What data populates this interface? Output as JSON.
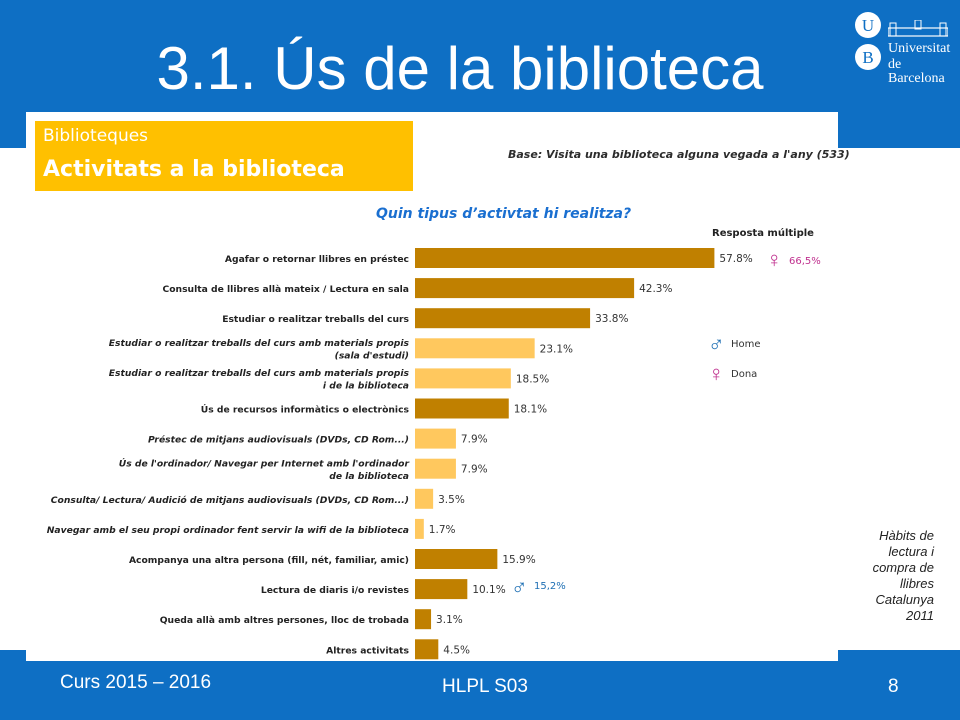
{
  "slide": {
    "title": "3.1. Ús de la biblioteca",
    "logo_line1": "Universitat",
    "logo_line2": "de Barcelona",
    "logo_letters": [
      "U",
      "B"
    ],
    "category_small": "Biblioteques",
    "category_big": "Activitats a la biblioteca",
    "base_note": "Base: Visita una biblioteca alguna vegada a l'any (533)",
    "question": "Quin tipus d’activtat hi realitza?",
    "multi_label": "Resposta múltiple",
    "source_lines": [
      "Hàbits de",
      "lectura i",
      "compra de",
      "llibres",
      "Catalunya",
      "2011"
    ],
    "footer_left": "Curs 2015 – 2016",
    "footer_center": "HLPL S03",
    "page_number": "8",
    "colors": {
      "band_blue": "#0e6fc4",
      "category_box": "#ffc000",
      "bar_dark": "#c08000",
      "bar_light": "#ffc85e",
      "female": "#c0318f",
      "male": "#1e6fb4"
    }
  },
  "legend": {
    "male_symbol": "♂",
    "male_label": "Home",
    "female_symbol": "♀",
    "female_label": "Dona"
  },
  "annotations": {
    "female_symbol": "♀",
    "female_value": "66,5%",
    "male_symbol": "♂",
    "male_value": "15,2%"
  },
  "chart_data": {
    "type": "bar",
    "orientation": "horizontal",
    "categories": [
      "Agafar o retornar llibres en préstec",
      "Consulta de llibres allà mateix / Lectura en sala",
      "Estudiar o realitzar treballs del curs",
      "Estudiar o realitzar treballs del curs amb materials propis\n(sala d'estudi)",
      "Estudiar o realitzar treballs del curs amb materials propis\ni de la biblioteca",
      "Ús de recursos informàtics o electrònics",
      "Préstec de mitjans audiovisuals (DVDs, CD Rom...)",
      "Ús de l'ordinador/ Navegar per Internet amb l'ordinador\nde la biblioteca",
      "Consulta/ Lectura/ Audició de mitjans audiovisuals (DVDs, CD Rom...)",
      "Navegar amb el seu propi ordinador fent servir la wifi de la biblioteca",
      "Acompanya una altra persona (fill, nét, familiar, amic)",
      "Lectura de diaris i/o revistes",
      "Queda allà amb altres persones, lloc de trobada",
      "Altres activitats"
    ],
    "values": [
      57.8,
      42.3,
      33.8,
      23.1,
      18.5,
      18.1,
      7.9,
      7.9,
      3.5,
      1.7,
      15.9,
      10.1,
      3.1,
      4.5
    ],
    "value_labels": [
      "57.8%",
      "42.3%",
      "33.8%",
      "23.1%",
      "18.5%",
      "18.1%",
      "7.9%",
      "7.9%",
      "3.5%",
      "1.7%",
      "15.9%",
      "10.1%",
      "3.1%",
      "4.5%"
    ],
    "highlight": [
      false,
      false,
      false,
      true,
      true,
      false,
      true,
      true,
      true,
      true,
      false,
      false,
      false,
      false
    ],
    "xlim": [
      0,
      100
    ],
    "title": "Quin tipus d’activtat hi realitza?",
    "grid": false
  }
}
